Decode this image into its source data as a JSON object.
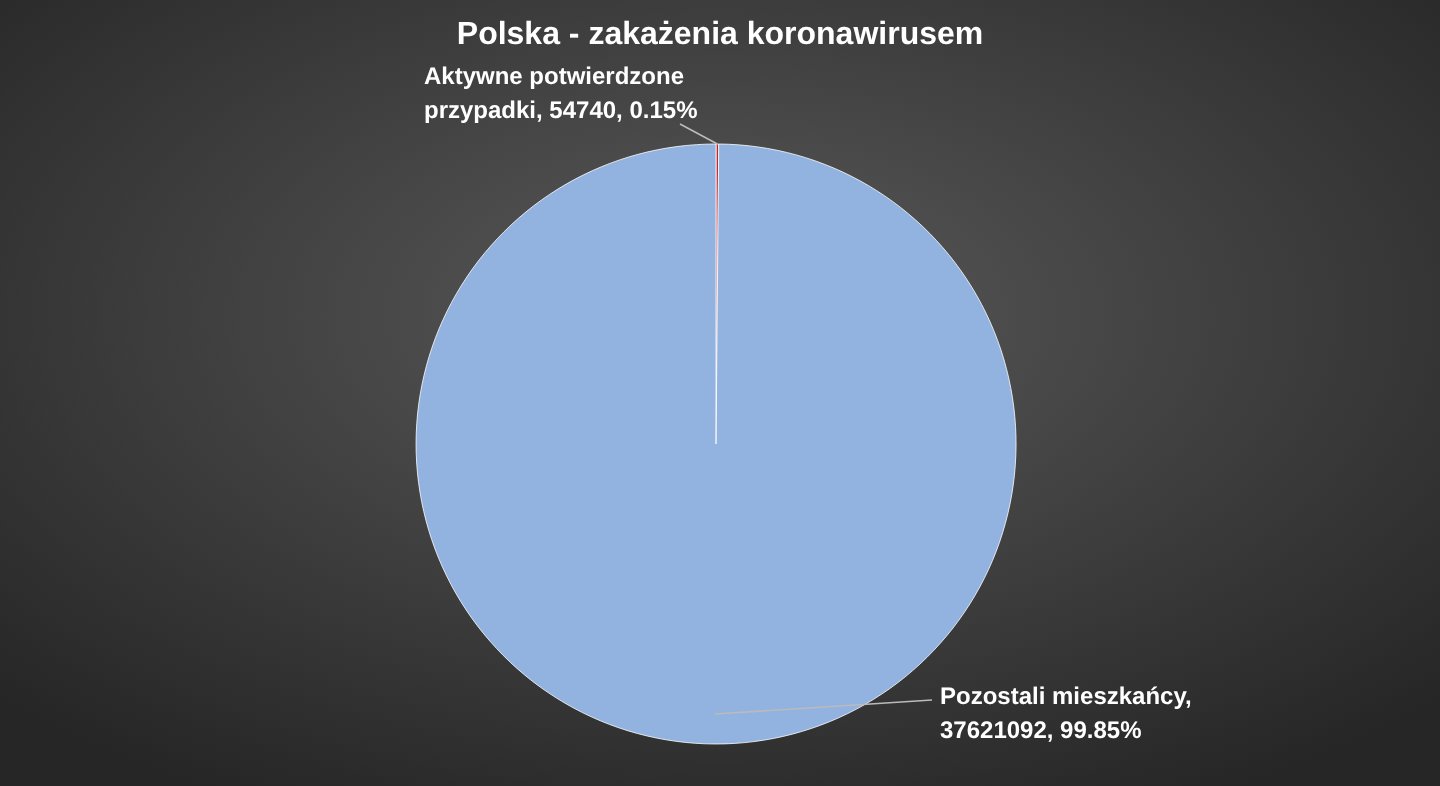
{
  "chart_data": {
    "type": "pie",
    "title": "Polska - zakażenia koronawirusem",
    "categories": [
      "Aktywne potwierdzone przypadki",
      "Pozostali mieszkańcy"
    ],
    "values": [
      54740,
      37621092
    ],
    "colors": [
      "#c0282d",
      "#92b2df"
    ],
    "value_labels": [
      ", 54740, 0.15%",
      ", 37621092, 99.85%"
    ]
  }
}
